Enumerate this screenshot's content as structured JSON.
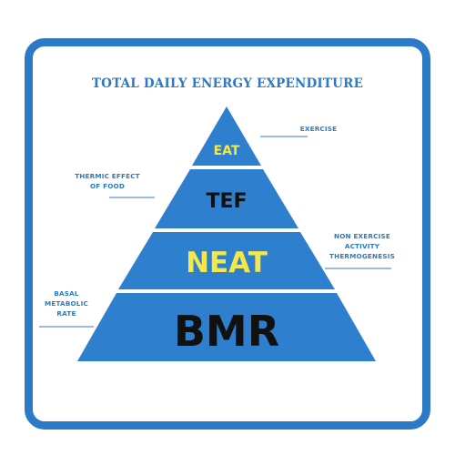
{
  "title": "TOTAL DAILY ENERGY EXPENDITURE",
  "tiers": [
    {
      "label": "EAT",
      "color": "#f3e84a"
    },
    {
      "label": "TEF",
      "color": "#111111"
    },
    {
      "label": "NEAT",
      "color": "#f3e84a"
    },
    {
      "label": "BMR",
      "color": "#111111"
    }
  ],
  "annotations": {
    "eat": [
      "EXERCISE"
    ],
    "tef": [
      "THERMIC EFFECT",
      "OF FOOD"
    ],
    "neat": [
      "NON EXERCISE",
      "ACTIVITY",
      "THERMOGENESIS"
    ],
    "bmr": [
      "BASAL",
      "METABOLIC",
      "RATE"
    ]
  },
  "colors": {
    "brand_blue": "#2c79c6",
    "pyramid_blue": "#2f7fcf",
    "highlight_yellow": "#f3e84a",
    "text_black": "#111111",
    "background": "#ffffff"
  }
}
